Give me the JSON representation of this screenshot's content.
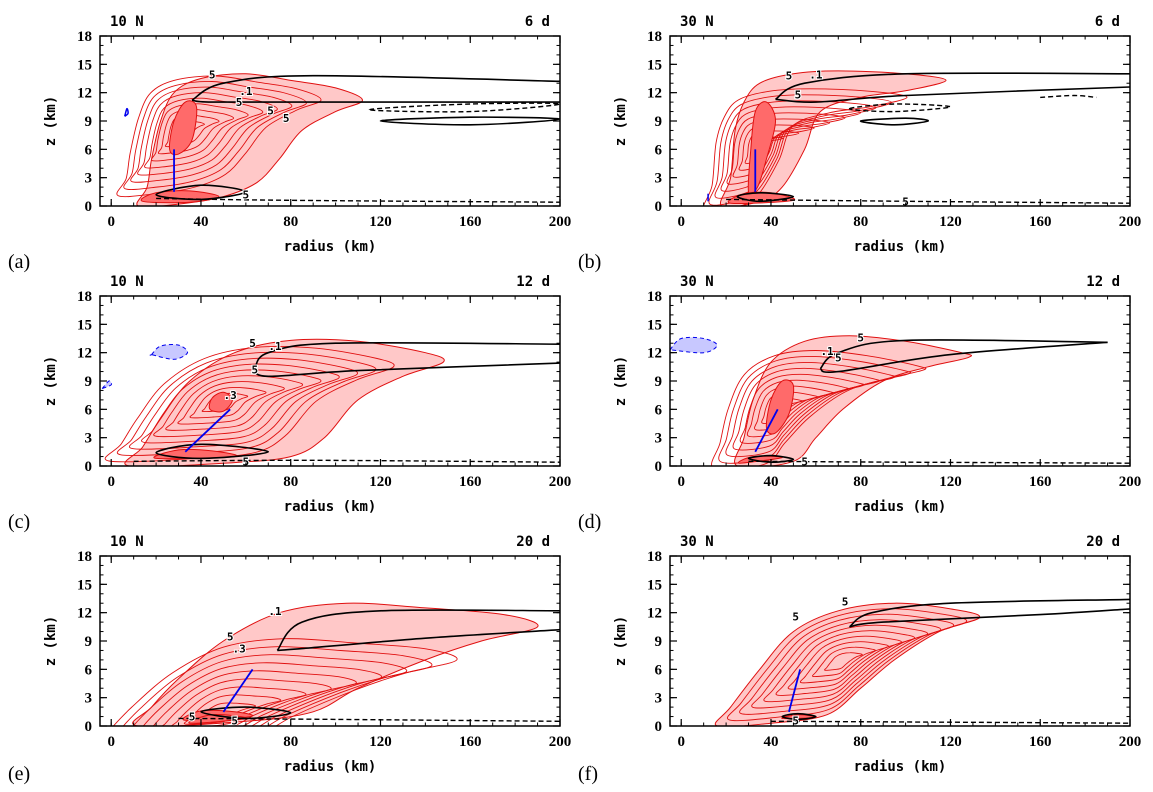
{
  "chart_data": [
    {
      "type": "contour",
      "panel_label": "(a)",
      "header_left": "10 N",
      "header_right": "6 d",
      "xlabel": "radius (km)",
      "ylabel": "z (km)",
      "xlim": [
        -5,
        200
      ],
      "ylim": [
        0,
        18
      ],
      "xticks": [
        0,
        40,
        80,
        120,
        160,
        200
      ],
      "yticks": [
        0,
        3,
        6,
        9,
        12,
        15,
        18
      ],
      "contour_labels": [
        "5",
        ".1",
        "5",
        "5",
        "5",
        "5"
      ],
      "slope_line": [
        [
          28,
          1.5
        ],
        [
          28,
          6
        ]
      ],
      "shading": "red filled contours; blue negative patch"
    },
    {
      "type": "contour",
      "panel_label": "(b)",
      "header_left": "30 N",
      "header_right": "6 d",
      "xlabel": "radius (km)",
      "ylabel": "z (km)",
      "xlim": [
        -5,
        200
      ],
      "ylim": [
        0,
        18
      ],
      "xticks": [
        0,
        40,
        80,
        120,
        160,
        200
      ],
      "yticks": [
        0,
        3,
        6,
        9,
        12,
        15,
        18
      ],
      "contour_labels": [
        "5",
        ".1",
        "5",
        "5"
      ],
      "slope_line": [
        [
          33,
          1.5
        ],
        [
          33,
          6
        ]
      ],
      "shading": "red filled contours"
    },
    {
      "type": "contour",
      "panel_label": "(c)",
      "header_left": "10 N",
      "header_right": "12 d",
      "xlabel": "radius (km)",
      "ylabel": "z (km)",
      "xlim": [
        -5,
        200
      ],
      "ylim": [
        0,
        18
      ],
      "xticks": [
        0,
        40,
        80,
        120,
        160,
        200
      ],
      "yticks": [
        0,
        3,
        6,
        9,
        12,
        15,
        18
      ],
      "contour_labels": [
        "5",
        ".1",
        "5",
        ".3",
        "5"
      ],
      "slope_line": [
        [
          33,
          1.5
        ],
        [
          53,
          6
        ]
      ],
      "shading": "red filled contours; blue negative patches"
    },
    {
      "type": "contour",
      "panel_label": "(d)",
      "header_left": "30 N",
      "header_right": "12 d",
      "xlabel": "radius (km)",
      "ylabel": "z (km)",
      "xlim": [
        -5,
        200
      ],
      "ylim": [
        0,
        18
      ],
      "xticks": [
        0,
        40,
        80,
        120,
        160,
        200
      ],
      "yticks": [
        0,
        3,
        6,
        9,
        12,
        15,
        18
      ],
      "contour_labels": [
        "5",
        ".1",
        "5",
        "5"
      ],
      "slope_line": [
        [
          33,
          1.5
        ],
        [
          43,
          6
        ]
      ],
      "shading": "red filled contours; blue negative patch"
    },
    {
      "type": "contour",
      "panel_label": "(e)",
      "header_left": "10 N",
      "header_right": "20 d",
      "xlabel": "radius (km)",
      "ylabel": "z (km)",
      "xlim": [
        -5,
        200
      ],
      "ylim": [
        0,
        18
      ],
      "xticks": [
        0,
        40,
        80,
        120,
        160,
        200
      ],
      "yticks": [
        0,
        3,
        6,
        9,
        12,
        15,
        18
      ],
      "contour_labels": [
        ".1",
        "5",
        ".3",
        "5",
        "5"
      ],
      "slope_line": [
        [
          50,
          1.5
        ],
        [
          63,
          6
        ]
      ],
      "shading": "red filled contours"
    },
    {
      "type": "contour",
      "panel_label": "(f)",
      "header_left": "30 N",
      "header_right": "20 d",
      "xlabel": "radius (km)",
      "ylabel": "z (km)",
      "xlim": [
        -5,
        200
      ],
      "ylim": [
        0,
        18
      ],
      "xticks": [
        0,
        40,
        80,
        120,
        160,
        200
      ],
      "yticks": [
        0,
        3,
        6,
        9,
        12,
        15,
        18
      ],
      "contour_labels": [
        "5",
        "5",
        "5"
      ],
      "slope_line": [
        [
          48,
          1.5
        ],
        [
          53,
          6
        ]
      ],
      "shading": "red filled contours"
    }
  ],
  "colors": {
    "fill_light": "#ffc8c8",
    "fill_dark": "#ff6a6a",
    "contour_red": "#e01010",
    "contour_black": "#000000",
    "slope_blue": "#0000ee",
    "negative_blue": "#c8c8ff"
  }
}
